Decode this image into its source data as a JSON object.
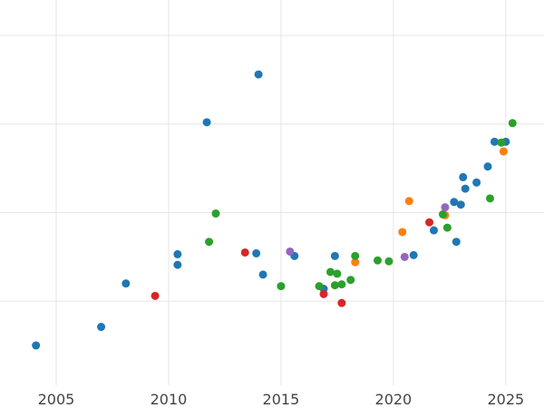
{
  "chart_data": {
    "type": "scatter",
    "title": "",
    "xlabel": "",
    "ylabel": "",
    "grid": true,
    "legend": "none",
    "xlim": [
      2002.5,
      2026.7
    ],
    "ylim": [
      0,
      4.35
    ],
    "x_ticks": [
      2005,
      2010,
      2015,
      2020,
      2025
    ],
    "x_tick_labels": [
      "2005",
      "2010",
      "2015",
      "2020",
      "2025"
    ],
    "y_gridlines": [
      0.95,
      1.95,
      2.95,
      3.95
    ],
    "series": [
      {
        "color": "#1f77b4",
        "points": [
          [
            2004.1,
            0.45
          ],
          [
            2007.0,
            0.66
          ],
          [
            2008.1,
            1.15
          ],
          [
            2010.4,
            1.36
          ],
          [
            2010.4,
            1.48
          ],
          [
            2011.7,
            2.97
          ],
          [
            2013.9,
            1.49
          ],
          [
            2014.0,
            3.51
          ],
          [
            2014.2,
            1.25
          ],
          [
            2015.6,
            1.46
          ],
          [
            2016.9,
            1.09
          ],
          [
            2017.4,
            1.46
          ],
          [
            2020.9,
            1.47
          ],
          [
            2021.8,
            1.75
          ],
          [
            2022.7,
            2.07
          ],
          [
            2022.8,
            1.62
          ],
          [
            2023.0,
            2.04
          ],
          [
            2023.1,
            2.35
          ],
          [
            2023.2,
            2.22
          ],
          [
            2023.7,
            2.29
          ],
          [
            2024.2,
            2.47
          ],
          [
            2024.5,
            2.75
          ],
          [
            2025.0,
            2.75
          ]
        ]
      },
      {
        "color": "#ff7f0e",
        "points": [
          [
            2018.3,
            1.39
          ],
          [
            2020.4,
            1.73
          ],
          [
            2020.7,
            2.08
          ],
          [
            2022.3,
            1.92
          ],
          [
            2024.9,
            2.64
          ]
        ]
      },
      {
        "color": "#2ca02c",
        "points": [
          [
            2011.8,
            1.62
          ],
          [
            2012.1,
            1.94
          ],
          [
            2015.0,
            1.12
          ],
          [
            2016.7,
            1.12
          ],
          [
            2017.2,
            1.28
          ],
          [
            2017.4,
            1.13
          ],
          [
            2017.5,
            1.26
          ],
          [
            2017.7,
            1.14
          ],
          [
            2018.1,
            1.19
          ],
          [
            2018.3,
            1.46
          ],
          [
            2019.3,
            1.41
          ],
          [
            2019.8,
            1.4
          ],
          [
            2022.2,
            1.93
          ],
          [
            2022.4,
            1.78
          ],
          [
            2024.3,
            2.11
          ],
          [
            2024.8,
            2.74
          ],
          [
            2025.3,
            2.96
          ]
        ]
      },
      {
        "color": "#d62728",
        "points": [
          [
            2009.4,
            1.01
          ],
          [
            2013.4,
            1.5
          ],
          [
            2016.9,
            1.03
          ],
          [
            2017.7,
            0.93
          ],
          [
            2021.6,
            1.84
          ]
        ]
      },
      {
        "color": "#9467bd",
        "points": [
          [
            2015.4,
            1.51
          ],
          [
            2020.5,
            1.45
          ],
          [
            2022.3,
            2.01
          ]
        ]
      }
    ]
  }
}
